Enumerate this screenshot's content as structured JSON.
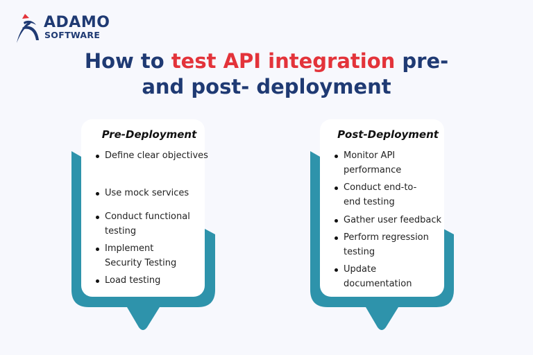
{
  "brand": {
    "name": "ADAMO",
    "sub": "SOFTWARE"
  },
  "title": {
    "part1": "How to ",
    "highlight": "test API integration",
    "part2": " pre-",
    "line2": "and post- deployment"
  },
  "colors": {
    "navy": "#1f3a73",
    "red": "#e3333a",
    "teal": "#2e93ab",
    "background": "#f7f8fd"
  },
  "cards": [
    {
      "title": "Pre-Deployment",
      "items": [
        "Define clear objectives",
        "Use mock services",
        "Conduct functional testing",
        "Implement Security Testing",
        "Load testing"
      ]
    },
    {
      "title": "Post-Deployment",
      "items": [
        "Monitor API performance",
        "Conduct end-to-end testing",
        "Gather user feedback",
        "Perform regression testing",
        "Update documentation"
      ]
    }
  ]
}
